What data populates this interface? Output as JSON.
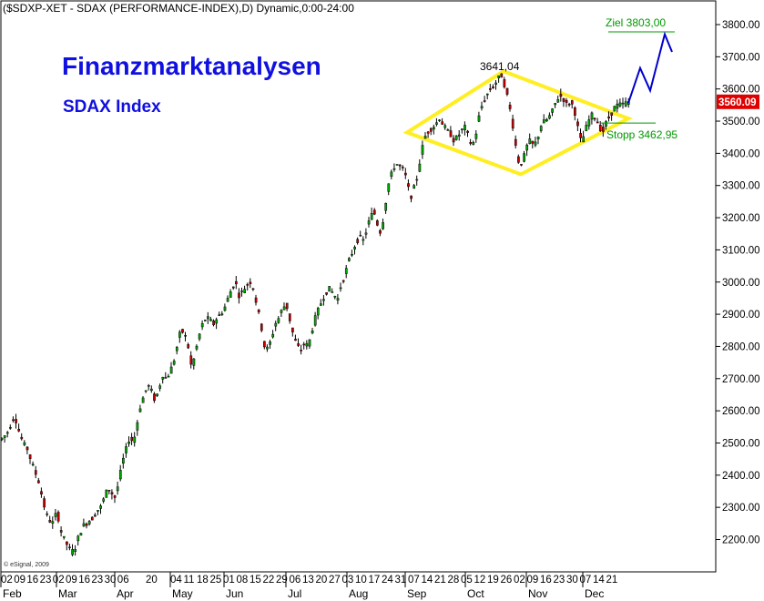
{
  "header": "($SDXP-XET - SDAX (PERFORMANCE-INDEX),D) Dynamic,0:00-24:00",
  "brand": {
    "title": "Finanzmarktanalysen",
    "subtitle": "SDAX Index",
    "color": "#1010e0"
  },
  "copyright": "© eSignal, 2009",
  "chart_data": {
    "type": "candlestick",
    "ylim": [
      2140,
      3880
    ],
    "yticks": [
      2200,
      2300,
      2400,
      2500,
      2600,
      2700,
      2800,
      2900,
      3000,
      3100,
      3200,
      3300,
      3400,
      3500,
      3600,
      3700,
      3800
    ],
    "ytick_labels": [
      "2200.00",
      "2300.00",
      "2400.00",
      "2500.00",
      "2600.00",
      "2700.00",
      "2800.00",
      "2900.00",
      "3000.00",
      "3100.00",
      "3200.00",
      "3300.00",
      "3400.00",
      "3500.00",
      "3600.00",
      "3700.00",
      "3800.00"
    ],
    "last_price": 3560.09,
    "last_price_label": "3560.09",
    "x_day_labels": [
      "02",
      "09",
      "16",
      "23",
      "02",
      "09",
      "16",
      "23",
      "30",
      "06",
      "20",
      "04",
      "11",
      "18",
      "25",
      "01",
      "08",
      "15",
      "22",
      "29",
      "06",
      "13",
      "20",
      "27",
      "03",
      "10",
      "17",
      "24",
      "31",
      "07",
      "14",
      "21",
      "28",
      "05",
      "12",
      "19",
      "26",
      "02",
      "09",
      "16",
      "23",
      "30",
      "07",
      "14",
      "21"
    ],
    "x_month_labels": [
      "Feb",
      "Mar",
      "Apr",
      "May",
      "Jun",
      "Jul",
      "Aug",
      "Sep",
      "Oct",
      "Nov",
      "Dec"
    ],
    "path": [
      [
        0,
        2510
      ],
      [
        4,
        2520
      ],
      [
        8,
        2535
      ],
      [
        12,
        2560
      ],
      [
        15,
        2590
      ],
      [
        18,
        2560
      ],
      [
        22,
        2520
      ],
      [
        26,
        2495
      ],
      [
        30,
        2480
      ],
      [
        34,
        2440
      ],
      [
        38,
        2410
      ],
      [
        42,
        2380
      ],
      [
        46,
        2330
      ],
      [
        50,
        2280
      ],
      [
        54,
        2260
      ],
      [
        58,
        2250
      ],
      [
        62,
        2290
      ],
      [
        66,
        2230
      ],
      [
        70,
        2200
      ],
      [
        74,
        2180
      ],
      [
        78,
        2160
      ],
      [
        82,
        2175
      ],
      [
        86,
        2210
      ],
      [
        90,
        2240
      ],
      [
        94,
        2250
      ],
      [
        98,
        2260
      ],
      [
        102,
        2270
      ],
      [
        106,
        2290
      ],
      [
        110,
        2300
      ],
      [
        114,
        2330
      ],
      [
        118,
        2360
      ],
      [
        122,
        2345
      ],
      [
        126,
        2330
      ],
      [
        130,
        2380
      ],
      [
        134,
        2440
      ],
      [
        138,
        2480
      ],
      [
        142,
        2520
      ],
      [
        146,
        2500
      ],
      [
        150,
        2560
      ],
      [
        154,
        2620
      ],
      [
        158,
        2650
      ],
      [
        162,
        2680
      ],
      [
        166,
        2660
      ],
      [
        170,
        2630
      ],
      [
        174,
        2670
      ],
      [
        178,
        2710
      ],
      [
        182,
        2700
      ],
      [
        186,
        2720
      ],
      [
        190,
        2750
      ],
      [
        194,
        2800
      ],
      [
        198,
        2850
      ],
      [
        202,
        2840
      ],
      [
        206,
        2800
      ],
      [
        210,
        2730
      ],
      [
        214,
        2780
      ],
      [
        218,
        2830
      ],
      [
        222,
        2870
      ],
      [
        226,
        2890
      ],
      [
        230,
        2880
      ],
      [
        234,
        2870
      ],
      [
        238,
        2890
      ],
      [
        242,
        2900
      ],
      [
        246,
        2920
      ],
      [
        250,
        2950
      ],
      [
        254,
        2980
      ],
      [
        258,
        3000
      ],
      [
        262,
        2960
      ],
      [
        266,
        2970
      ],
      [
        270,
        2990
      ],
      [
        274,
        3000
      ],
      [
        278,
        2980
      ],
      [
        282,
        2920
      ],
      [
        286,
        2870
      ],
      [
        290,
        2800
      ],
      [
        294,
        2790
      ],
      [
        298,
        2830
      ],
      [
        302,
        2870
      ],
      [
        306,
        2890
      ],
      [
        310,
        2920
      ],
      [
        314,
        2930
      ],
      [
        318,
        2880
      ],
      [
        322,
        2830
      ],
      [
        326,
        2800
      ],
      [
        330,
        2790
      ],
      [
        334,
        2810
      ],
      [
        338,
        2800
      ],
      [
        342,
        2850
      ],
      [
        346,
        2890
      ],
      [
        350,
        2920
      ],
      [
        354,
        2950
      ],
      [
        358,
        2970
      ],
      [
        362,
        2980
      ],
      [
        366,
        2960
      ],
      [
        370,
        2950
      ],
      [
        374,
        2990
      ],
      [
        378,
        3020
      ],
      [
        382,
        3060
      ],
      [
        386,
        3090
      ],
      [
        390,
        3120
      ],
      [
        394,
        3140
      ],
      [
        398,
        3130
      ],
      [
        402,
        3160
      ],
      [
        406,
        3200
      ],
      [
        410,
        3220
      ],
      [
        414,
        3180
      ],
      [
        418,
        3150
      ],
      [
        422,
        3230
      ],
      [
        426,
        3300
      ],
      [
        430,
        3340
      ],
      [
        434,
        3370
      ],
      [
        438,
        3360
      ],
      [
        442,
        3350
      ],
      [
        446,
        3320
      ],
      [
        450,
        3260
      ],
      [
        454,
        3290
      ],
      [
        458,
        3330
      ],
      [
        462,
        3400
      ],
      [
        466,
        3450
      ],
      [
        470,
        3470
      ],
      [
        474,
        3480
      ],
      [
        478,
        3490
      ],
      [
        482,
        3510
      ],
      [
        486,
        3490
      ],
      [
        490,
        3470
      ],
      [
        494,
        3460
      ],
      [
        498,
        3440
      ],
      [
        502,
        3450
      ],
      [
        506,
        3470
      ],
      [
        510,
        3480
      ],
      [
        514,
        3450
      ],
      [
        518,
        3420
      ],
      [
        522,
        3460
      ],
      [
        526,
        3520
      ],
      [
        530,
        3560
      ],
      [
        534,
        3580
      ],
      [
        538,
        3600
      ],
      [
        542,
        3610
      ],
      [
        546,
        3630
      ],
      [
        550,
        3641
      ],
      [
        554,
        3610
      ],
      [
        558,
        3560
      ],
      [
        562,
        3500
      ],
      [
        566,
        3420
      ],
      [
        570,
        3360
      ],
      [
        574,
        3380
      ],
      [
        578,
        3420
      ],
      [
        582,
        3440
      ],
      [
        586,
        3420
      ],
      [
        590,
        3450
      ],
      [
        594,
        3490
      ],
      [
        598,
        3500
      ],
      [
        602,
        3510
      ],
      [
        606,
        3530
      ],
      [
        610,
        3560
      ],
      [
        614,
        3580
      ],
      [
        618,
        3570
      ],
      [
        622,
        3550
      ],
      [
        626,
        3560
      ],
      [
        630,
        3540
      ],
      [
        634,
        3480
      ],
      [
        638,
        3430
      ],
      [
        642,
        3470
      ],
      [
        646,
        3500
      ],
      [
        650,
        3520
      ],
      [
        654,
        3510
      ],
      [
        658,
        3480
      ],
      [
        662,
        3470
      ],
      [
        666,
        3500
      ],
      [
        670,
        3520
      ],
      [
        674,
        3540
      ],
      [
        678,
        3550
      ],
      [
        682,
        3550
      ],
      [
        686,
        3555
      ],
      [
        690,
        3560
      ]
    ],
    "annotations": {
      "top_label": "3641,04",
      "top_value": 3641.04,
      "target_label": "Ziel 3803,00",
      "target_value": 3803,
      "stop_label": "Stopp 3462,95",
      "stop_value": 3462.95
    },
    "pattern": {
      "name": "diamond",
      "vertices": [
        [
          447,
          3465
        ],
        [
          553,
          3655
        ],
        [
          690,
          3508
        ],
        [
          572,
          3335
        ]
      ],
      "color": "#ffee22"
    },
    "projection": [
      [
        690,
        3556
      ],
      [
        703,
        3665
      ],
      [
        714,
        3595
      ],
      [
        730,
        3770
      ],
      [
        738,
        3715
      ]
    ],
    "colors": {
      "up": "#00aa00",
      "down": "#cc0000",
      "target": "#009900",
      "stop": "#009900",
      "projection": "#0000cc",
      "last_price_bg": "#e00000"
    }
  }
}
